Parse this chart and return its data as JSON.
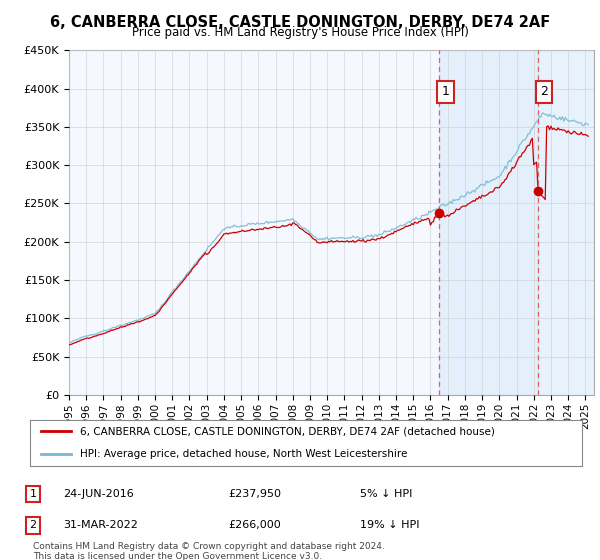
{
  "title": "6, CANBERRA CLOSE, CASTLE DONINGTON, DERBY, DE74 2AF",
  "subtitle": "Price paid vs. HM Land Registry's House Price Index (HPI)",
  "ylabel_ticks": [
    "£0",
    "£50K",
    "£100K",
    "£150K",
    "£200K",
    "£250K",
    "£300K",
    "£350K",
    "£400K",
    "£450K"
  ],
  "ylim": [
    0,
    450000
  ],
  "xlim_start": 1995.0,
  "xlim_end": 2025.5,
  "transaction1_date": 2016.48,
  "transaction1_price": 237950,
  "transaction1_label": "1",
  "transaction2_date": 2022.22,
  "transaction2_price": 266000,
  "transaction2_label": "2",
  "hpi_color": "#7ab8d4",
  "property_color": "#cc0000",
  "vline_color": "#e06060",
  "shade_color": "#daeeff",
  "background_color": "#ffffff",
  "plot_bg_color": "#f5f9ff",
  "grid_color": "#cccccc",
  "legend_line1": "6, CANBERRA CLOSE, CASTLE DONINGTON, DERBY, DE74 2AF (detached house)",
  "legend_line2": "HPI: Average price, detached house, North West Leicestershire",
  "footnote": "Contains HM Land Registry data © Crown copyright and database right 2024.\nThis data is licensed under the Open Government Licence v3.0.",
  "table_row1": [
    "1",
    "24-JUN-2016",
    "£237,950",
    "5% ↓ HPI"
  ],
  "table_row2": [
    "2",
    "31-MAR-2022",
    "£266,000",
    "19% ↓ HPI"
  ]
}
